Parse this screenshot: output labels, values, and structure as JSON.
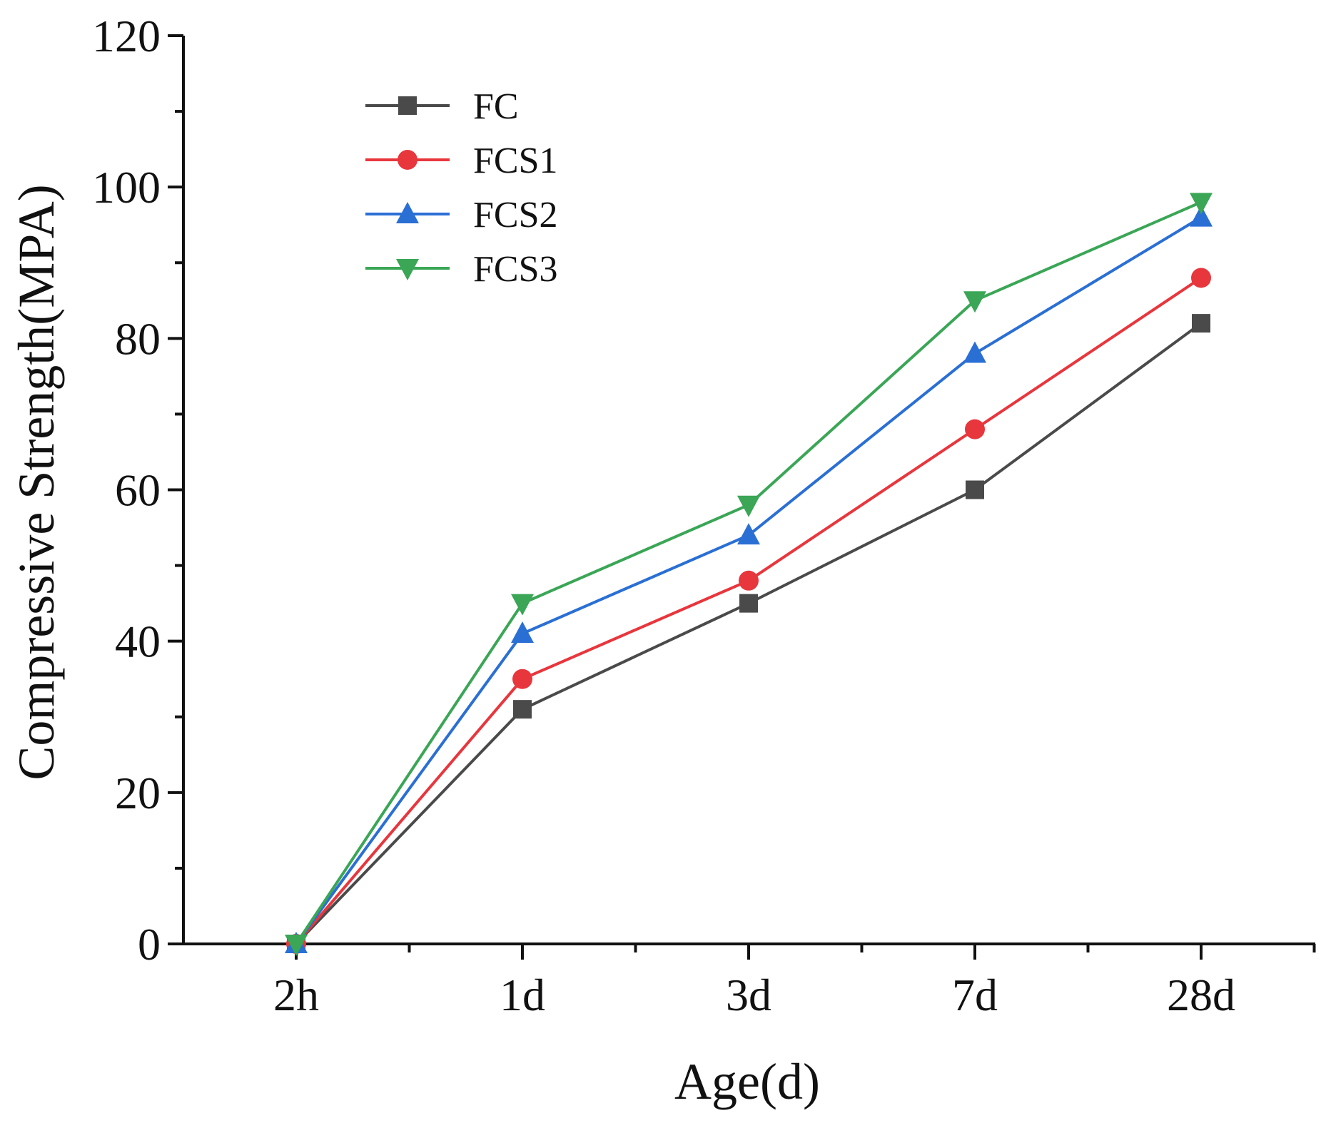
{
  "chart_data": {
    "type": "line",
    "title": "",
    "xlabel": "Age(d)",
    "ylabel": "Compressive Strength(MPA)",
    "categories": [
      "2h",
      "1d",
      "3d",
      "7d",
      "28d"
    ],
    "ylim": [
      0,
      120
    ],
    "yticks": [
      0,
      20,
      40,
      60,
      80,
      100,
      120
    ],
    "grid": false,
    "legend_position": "top-left",
    "series": [
      {
        "name": "FC",
        "marker": "square",
        "color": "#4a4a4a",
        "values": [
          0,
          31,
          45,
          60,
          82
        ]
      },
      {
        "name": "FCS1",
        "marker": "circle",
        "color": "#e8363d",
        "values": [
          0,
          35,
          48,
          68,
          88
        ]
      },
      {
        "name": "FCS2",
        "marker": "triangle-up",
        "color": "#2a6fd4",
        "values": [
          0,
          41,
          54,
          78,
          96
        ]
      },
      {
        "name": "FCS3",
        "marker": "triangle-down",
        "color": "#3aa656",
        "values": [
          0,
          45,
          58,
          85,
          98
        ]
      }
    ]
  }
}
